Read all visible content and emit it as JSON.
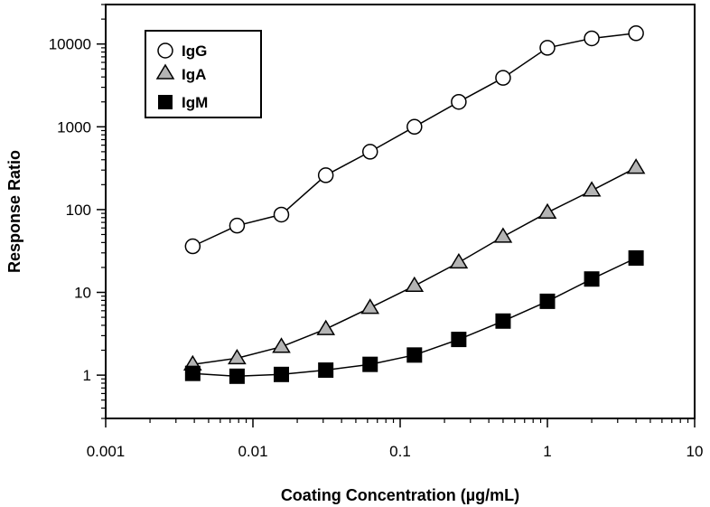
{
  "chart_data": {
    "type": "line",
    "title": "",
    "xlabel": "Coating Concentration (µg/mL)",
    "ylabel": "Response Ratio",
    "xscale": "log",
    "yscale": "log",
    "xlim": [
      0.001,
      10
    ],
    "ylim": [
      0.3,
      30000
    ],
    "x_ticks": [
      0.001,
      0.01,
      0.1,
      1,
      10
    ],
    "x_tick_labels": [
      "0.001",
      "0.01",
      "0.1",
      "1",
      "10"
    ],
    "y_ticks": [
      1,
      10,
      100,
      1000,
      10000
    ],
    "y_tick_labels": [
      "1",
      "10",
      "100",
      "1000",
      "10000"
    ],
    "grid": false,
    "legend_position": "top-left",
    "x": [
      0.0039,
      0.0078,
      0.0156,
      0.03125,
      0.0625,
      0.125,
      0.25,
      0.5,
      1,
      2,
      4
    ],
    "series": [
      {
        "name": "IgG",
        "marker": "circle",
        "fill": "#ffffff",
        "values": [
          36,
          64,
          87,
          260,
          500,
          1000,
          2000,
          3900,
          9000,
          11700,
          13500
        ]
      },
      {
        "name": "IgA",
        "marker": "triangle",
        "fill": "#b4b4b4",
        "values": [
          1.35,
          1.6,
          2.2,
          3.6,
          6.5,
          12,
          23,
          47,
          92,
          170,
          320
        ]
      },
      {
        "name": "IgM",
        "marker": "square",
        "fill": "#000000",
        "values": [
          1.05,
          0.97,
          1.02,
          1.15,
          1.35,
          1.75,
          2.7,
          4.5,
          7.8,
          14.5,
          26
        ]
      }
    ]
  }
}
